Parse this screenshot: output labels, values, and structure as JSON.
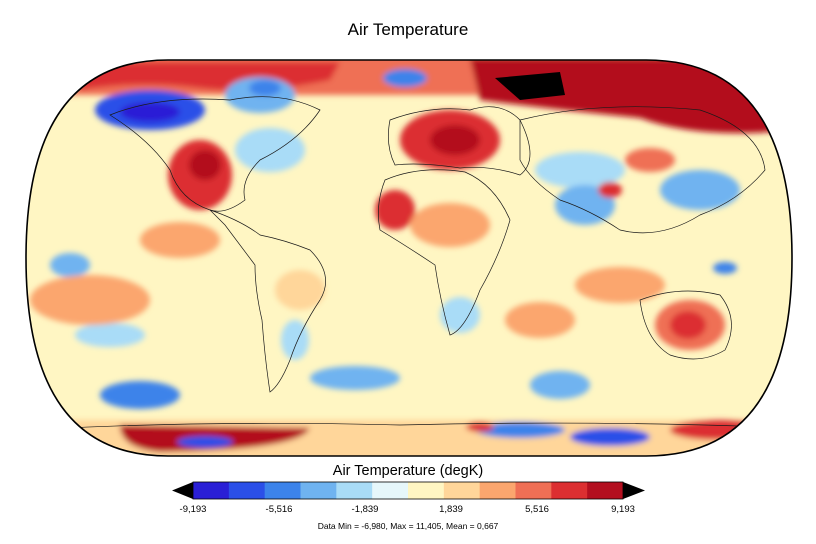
{
  "title": "Air Temperature",
  "colorbar": {
    "title": "Air Temperature (degK)",
    "min": -9.193,
    "max": 9.193,
    "tick_labels": [
      "-9,193",
      "-5,516",
      "-1,839",
      "1,839",
      "5,516",
      "9,193"
    ],
    "colors": [
      "#2a1fd6",
      "#2b4fe8",
      "#3c83ea",
      "#6fb3f0",
      "#a9dcf7",
      "#e6f7fb",
      "#fff6c3",
      "#ffd69a",
      "#fba66e",
      "#ef6f55",
      "#dc2f31",
      "#b30f1f"
    ]
  },
  "stats": "Data Min = -6,980, Max = 11,405, Mean = 0,667"
}
